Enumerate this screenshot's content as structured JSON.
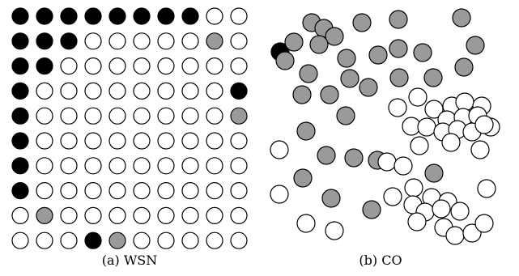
{
  "panels": [
    {
      "caption": "(a) WSN"
    },
    {
      "caption": "(b) CO"
    }
  ]
}
